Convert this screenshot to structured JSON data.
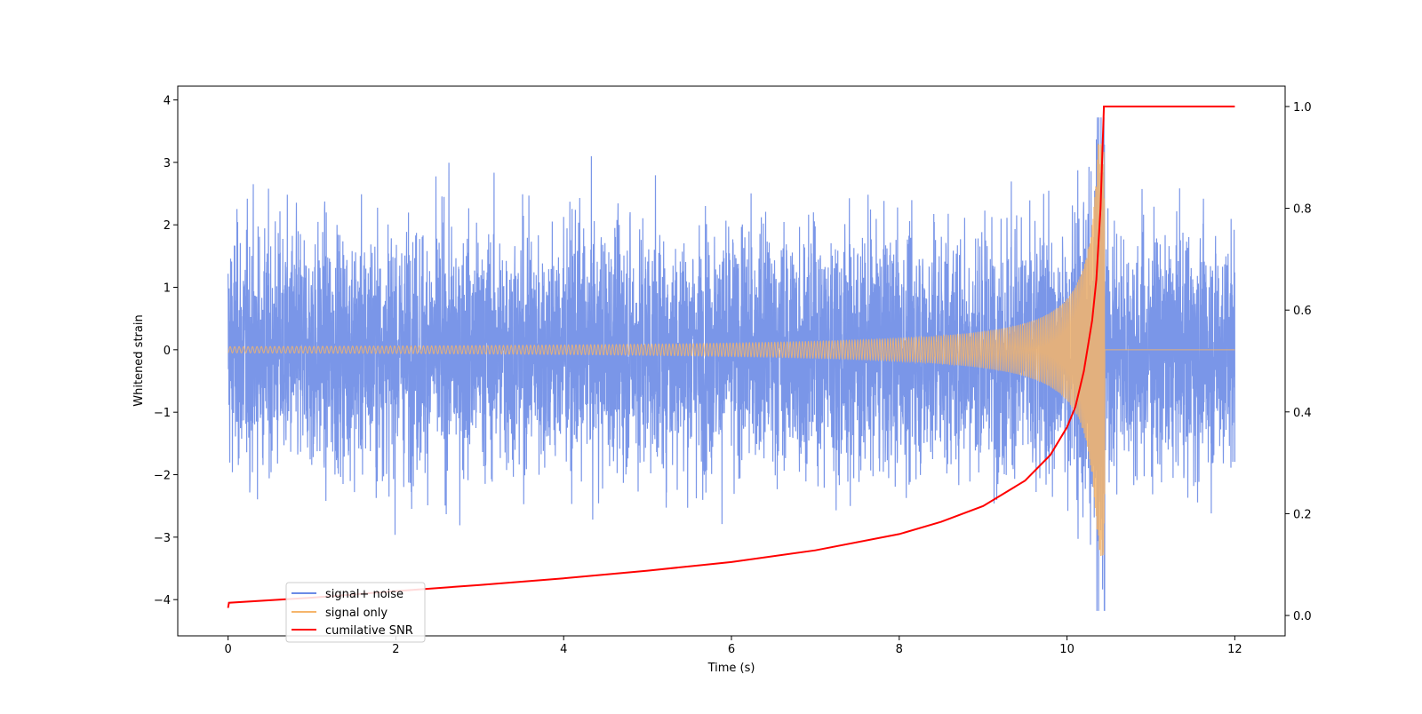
{
  "chart_data": {
    "type": "line",
    "title": "",
    "xlabel": "Time (s)",
    "ylabel": "Whitened strain",
    "ylabel_right": "",
    "xlim": [
      -0.6,
      12.6
    ],
    "ylim": [
      -4.58,
      4.22
    ],
    "ylim_right": [
      -0.04,
      1.04
    ],
    "x_ticks": [
      0,
      2,
      4,
      6,
      8,
      10,
      12
    ],
    "y_ticks": [
      -4,
      -3,
      -2,
      -1,
      0,
      1,
      2,
      3,
      4
    ],
    "y_ticks_right": [
      0.0,
      0.2,
      0.4,
      0.6,
      0.8,
      1.0
    ],
    "x_tick_labels": [
      "0",
      "2",
      "4",
      "6",
      "8",
      "10",
      "12"
    ],
    "y_tick_labels": [
      "−4",
      "−3",
      "−2",
      "−1",
      "0",
      "1",
      "2",
      "3",
      "4"
    ],
    "y_tick_labels_right": [
      "0.0",
      "0.2",
      "0.4",
      "0.6",
      "0.8",
      "1.0"
    ],
    "grid": false,
    "legend_position": "lower-left",
    "series": [
      {
        "name": "signal+ noise",
        "color": "#6b8be6",
        "axis": "left",
        "description": "whitened data, noise envelope approx ±2.5 with spikes to ±4",
        "time_range": [
          0,
          12
        ],
        "envelope_typical": 2.3,
        "max": 3.72,
        "min": -4.18
      },
      {
        "name": "signal only",
        "color": "#f5b56b",
        "axis": "left",
        "description": "chirp waveform, amplitude grows toward merger at t≈10.45 s then zero",
        "time_range": [
          0,
          12
        ],
        "merger_time": 10.45,
        "amplitude_start": 0.05,
        "amplitude_peak": 3.3
      },
      {
        "name": "cumilative SNR",
        "color": "#ff0000",
        "axis": "right",
        "points": [
          [
            0.0,
            0.015
          ],
          [
            0.01,
            0.025
          ],
          [
            1,
            0.035
          ],
          [
            2,
            0.048
          ],
          [
            3,
            0.06
          ],
          [
            4,
            0.073
          ],
          [
            5,
            0.088
          ],
          [
            6,
            0.105
          ],
          [
            7,
            0.128
          ],
          [
            8,
            0.16
          ],
          [
            8.5,
            0.184
          ],
          [
            9,
            0.215
          ],
          [
            9.5,
            0.265
          ],
          [
            9.8,
            0.315
          ],
          [
            10,
            0.37
          ],
          [
            10.1,
            0.41
          ],
          [
            10.2,
            0.48
          ],
          [
            10.3,
            0.58
          ],
          [
            10.35,
            0.66
          ],
          [
            10.4,
            0.8
          ],
          [
            10.44,
            1.0
          ],
          [
            12,
            1.0
          ]
        ]
      }
    ]
  }
}
